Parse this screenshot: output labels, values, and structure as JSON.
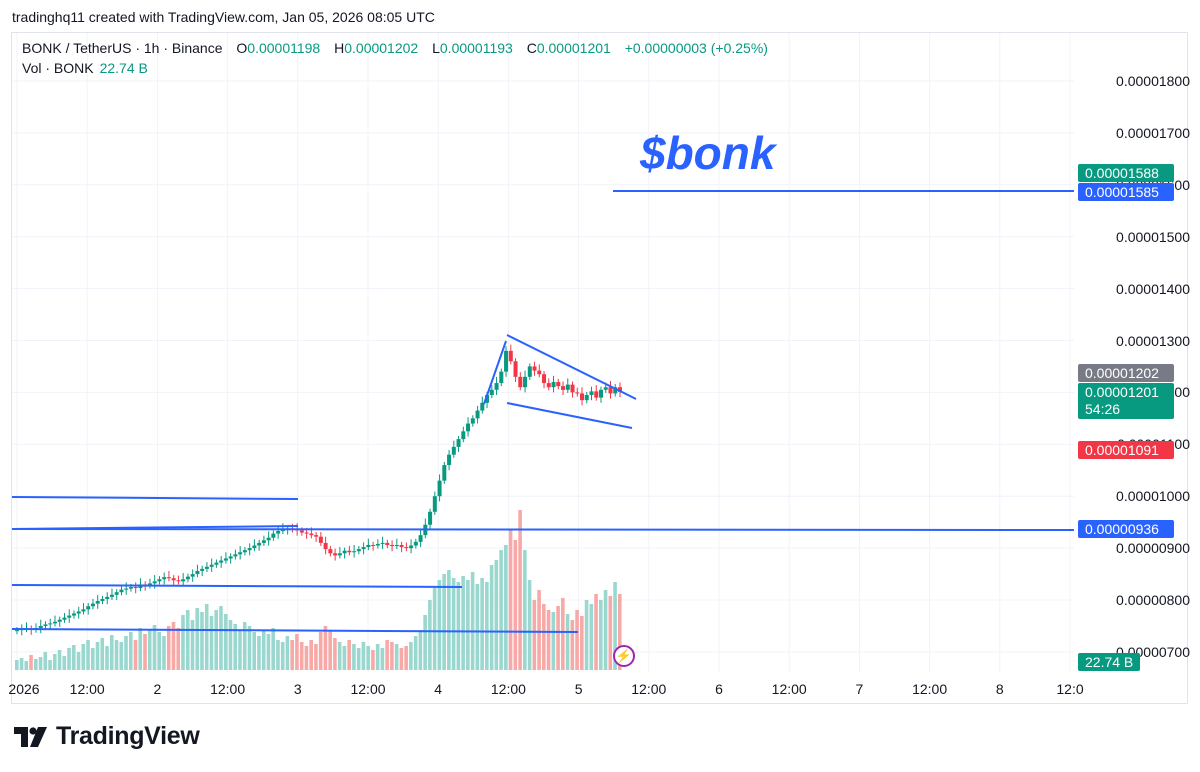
{
  "caption": "tradinghq11 created with TradingView.com, Jan 05, 2026 08:05 UTC",
  "legend": {
    "symbol": "BONK / TetherUS · 1h · Binance",
    "o_label": "O",
    "o_value": "0.00001198",
    "h_label": "H",
    "h_value": "0.00001202",
    "l_label": "L",
    "l_value": "0.00001193",
    "c_label": "C",
    "c_value": "0.00001201",
    "change": "+0.00000003 (+0.25%)",
    "vol_label": "Vol · BONK",
    "vol_value": "22.74 B"
  },
  "annotation_text": "$bonk",
  "brand": "TradingView",
  "colors": {
    "up": "#089981",
    "down": "#f23645",
    "line": "#2962ff",
    "up_volume": "#9ad7ce",
    "down_volume": "#f7a9a7",
    "target_zone": "#d6ede9",
    "stop_zone": "#fbdde0"
  },
  "tags": [
    {
      "text": "0.00001588",
      "color": "#089981"
    },
    {
      "text": "0.00001585",
      "color": "#2962ff"
    },
    {
      "text": "0.00001202",
      "color": "#787b86"
    },
    {
      "text": "0.00001201",
      "sub": "54:26",
      "color": "#089981"
    },
    {
      "text": "0.00001091",
      "color": "#f23645"
    },
    {
      "text": "0.00000936",
      "color": "#2962ff"
    },
    {
      "text": "22.74 B",
      "color": "#089981"
    }
  ],
  "chart_data": {
    "type": "candlestick",
    "interval": "1h",
    "y_ticks": [
      "0.00001800",
      "0.00001700",
      "0.00001600",
      "0.00001500",
      "0.00001400",
      "0.00001300",
      "0.00001200",
      "0.00001100",
      "0.00001000",
      "0.00000900",
      "0.00000800",
      "0.00000700"
    ],
    "x_ticks": [
      "2026",
      "12:00",
      "2",
      "12:00",
      "3",
      "12:00",
      "4",
      "12:00",
      "5",
      "12:00",
      "6",
      "12:00",
      "7",
      "12:00",
      "8",
      "12:0"
    ],
    "ylim": [
      6.8e-06,
      1.88e-05
    ],
    "candles_close": [
      7.42,
      7.44,
      7.45,
      7.43,
      7.46,
      7.5,
      7.53,
      7.55,
      7.58,
      7.62,
      7.66,
      7.7,
      7.74,
      7.78,
      7.82,
      7.88,
      7.93,
      7.98,
      8.02,
      8.06,
      8.1,
      8.15,
      8.2,
      8.22,
      8.25,
      8.23,
      8.3,
      8.28,
      8.32,
      8.36,
      8.4,
      8.44,
      8.42,
      8.38,
      8.36,
      8.4,
      8.45,
      8.5,
      8.56,
      8.6,
      8.64,
      8.68,
      8.72,
      8.76,
      8.8,
      8.84,
      8.88,
      8.92,
      8.96,
      9.0,
      9.05,
      9.1,
      9.15,
      9.2,
      9.28,
      9.33,
      9.36,
      9.38,
      9.36,
      9.34,
      9.3,
      9.28,
      9.25,
      9.22,
      9.1,
      8.98,
      8.9,
      8.86,
      8.9,
      8.95,
      8.92,
      8.94,
      8.98,
      9.02,
      9.06,
      9.05,
      9.08,
      9.1,
      9.06,
      9.04,
      9.06,
      9.02,
      9.0,
      9.05,
      9.12,
      9.25,
      9.45,
      9.7,
      10.0,
      10.3,
      10.6,
      10.8,
      10.95,
      11.1,
      11.25,
      11.4,
      11.5,
      11.65,
      11.8,
      11.95,
      12.05,
      12.18,
      12.4,
      12.8,
      12.6,
      12.3,
      12.1,
      12.3,
      12.5,
      12.42,
      12.35,
      12.18,
      12.1,
      12.2,
      12.12,
      12.05,
      12.15,
      12.0,
      11.98,
      11.85,
      11.95,
      12.02,
      11.9,
      12.05,
      12.1,
      11.98,
      12.1,
      12.01
    ],
    "volume_relative": [
      0.1,
      0.12,
      0.09,
      0.15,
      0.11,
      0.13,
      0.18,
      0.1,
      0.16,
      0.2,
      0.14,
      0.22,
      0.25,
      0.18,
      0.26,
      0.3,
      0.22,
      0.28,
      0.32,
      0.24,
      0.35,
      0.3,
      0.28,
      0.34,
      0.38,
      0.3,
      0.42,
      0.36,
      0.4,
      0.45,
      0.38,
      0.34,
      0.44,
      0.48,
      0.42,
      0.55,
      0.6,
      0.5,
      0.62,
      0.58,
      0.66,
      0.54,
      0.6,
      0.64,
      0.56,
      0.5,
      0.46,
      0.4,
      0.48,
      0.44,
      0.38,
      0.34,
      0.4,
      0.36,
      0.42,
      0.3,
      0.28,
      0.34,
      0.3,
      0.36,
      0.28,
      0.24,
      0.3,
      0.26,
      0.38,
      0.44,
      0.4,
      0.32,
      0.28,
      0.24,
      0.3,
      0.26,
      0.22,
      0.28,
      0.24,
      0.2,
      0.26,
      0.22,
      0.3,
      0.28,
      0.26,
      0.22,
      0.24,
      0.28,
      0.34,
      0.4,
      0.55,
      0.7,
      0.82,
      0.9,
      0.96,
      1.0,
      0.92,
      0.88,
      0.94,
      0.9,
      0.98,
      0.86,
      0.92,
      0.88,
      1.05,
      1.1,
      1.2,
      1.25,
      1.4,
      1.3,
      1.6,
      1.2,
      0.9,
      0.7,
      0.8,
      0.66,
      0.6,
      0.58,
      0.64,
      0.72,
      0.56,
      0.5,
      0.6,
      0.54,
      0.7,
      0.66,
      0.76,
      0.7,
      0.8,
      0.74,
      0.88,
      0.76
    ],
    "patterns": {
      "flag_upper": [
        [
          12.95,
          0
        ],
        [
          12.0,
          1
        ]
      ],
      "flag_lower": [
        [
          12.0,
          0
        ],
        [
          11.45,
          1
        ]
      ],
      "pole": [
        [
          9.05,
          0
        ],
        [
          12.9,
          1
        ]
      ]
    },
    "levels": {
      "target": 1.585e-05,
      "entry": 1.201e-05,
      "stop": 1.091e-05,
      "support": 9.36e-06
    }
  }
}
